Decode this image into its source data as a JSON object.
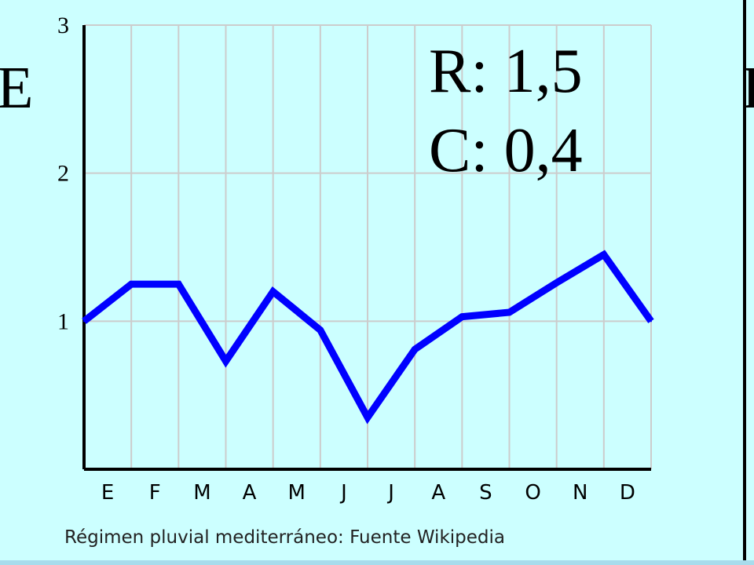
{
  "page": {
    "left_letter": "E",
    "right_letter": "I",
    "caption": "Régimen pluvial mediterráneo: Fuente Wikipedia"
  },
  "colors": {
    "background": "#ccffff",
    "line": "#0000ff",
    "grid": "#cccccc",
    "axis": "#000000"
  },
  "chart_data": {
    "type": "line",
    "title": "",
    "xlabel": "",
    "ylabel": "",
    "categories": [
      "E",
      "F",
      "M",
      "A",
      "M",
      "J",
      "J",
      "A",
      "S",
      "O",
      "N",
      "D"
    ],
    "x": [
      0,
      1,
      2,
      3,
      4,
      5,
      6,
      7,
      8,
      9,
      10,
      11,
      12
    ],
    "series": [
      {
        "values": [
          1.0,
          1.25,
          1.25,
          0.73,
          1.2,
          0.94,
          0.35,
          0.81,
          1.03,
          1.06,
          1.26,
          1.45,
          1.0
        ]
      }
    ],
    "ylim": [
      0,
      3
    ],
    "yticks": [
      1,
      2,
      3
    ],
    "ytick_labels": [
      "1",
      "2",
      "3"
    ],
    "annotations": [
      "R: 1,5",
      "C: 0,4"
    ],
    "grid": true,
    "legend": "none"
  }
}
